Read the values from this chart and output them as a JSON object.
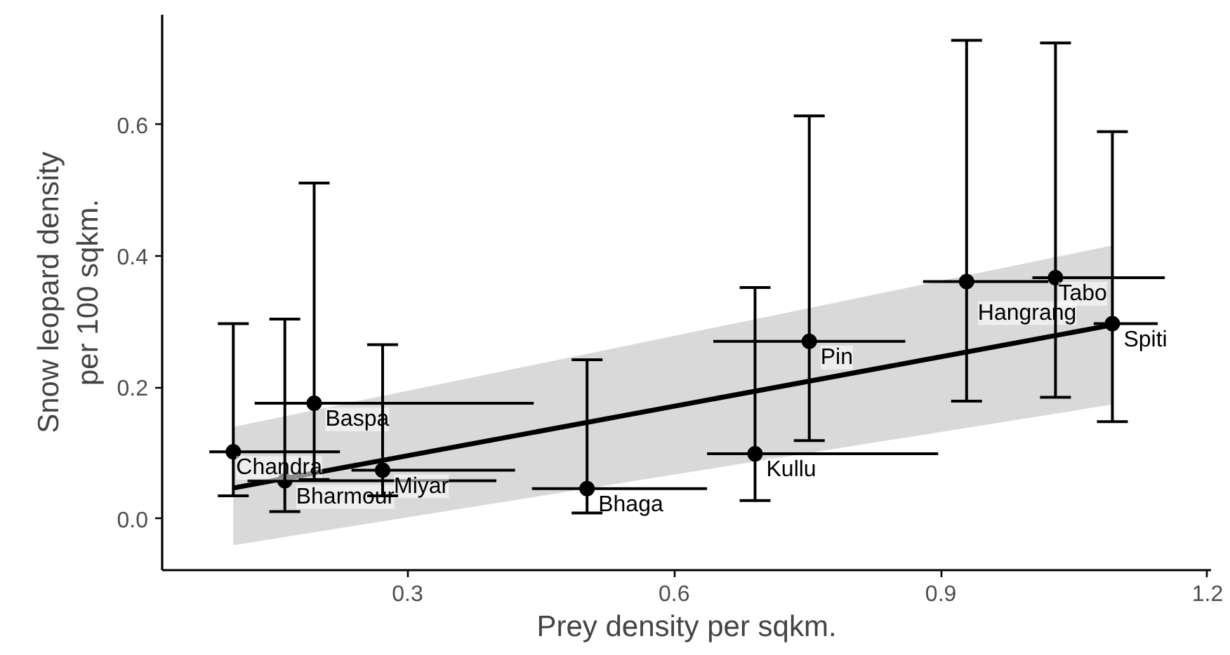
{
  "chart_data": {
    "type": "scatter",
    "xlabel": "Prey density per sqkm.",
    "ylabel": "Snow leopard density\nper 100 sqkm.",
    "xlim": [
      0.024,
      1.204
    ],
    "ylim": [
      -0.078,
      0.767
    ],
    "xticks": [
      0.3,
      0.6,
      0.9,
      1.2
    ],
    "yticks": [
      {
        "value": 0,
        "label": "0.0"
      },
      0.2,
      0.4,
      0.6
    ],
    "grid": false,
    "series": [
      {
        "type": "line",
        "color": "#000000",
        "x": [
          0.104,
          1.093
        ],
        "values": [
          0.047,
          0.295
        ],
        "lower": [
          -0.04,
          0.174
        ],
        "upper": [
          0.14,
          0.416
        ]
      },
      {
        "color": "#000000",
        "marker": "circle",
        "x": [
          0.104,
          0.162,
          0.272,
          0.195,
          0.502,
          0.691,
          0.752,
          0.929,
          1.029,
          1.093
        ],
        "values": [
          0.102,
          0.058,
          0.074,
          0.176,
          0.046,
          0.099,
          0.27,
          0.361,
          0.367,
          0.297
        ],
        "errors": [
          [
            0.035,
            0.297
          ],
          [
            0.011,
            0.304
          ],
          [
            0.035,
            0.265
          ],
          [
            0.06,
            0.511
          ],
          [
            0.009,
            0.242
          ],
          [
            0.028,
            0.352
          ],
          [
            0.119,
            0.613
          ],
          [
            0.179,
            0.728
          ],
          [
            0.185,
            0.724
          ],
          [
            0.148,
            0.589
          ]
        ],
        "xerrors": [
          [
            0.077,
            0.224
          ],
          [
            0.12,
            0.4
          ],
          [
            0.237,
            0.421
          ],
          [
            0.128,
            0.442
          ],
          [
            0.44,
            0.637
          ],
          [
            0.637,
            0.897
          ],
          [
            0.644,
            0.86
          ],
          [
            0.88,
            1.021
          ],
          [
            1.003,
            1.152
          ],
          [
            1.072,
            1.144
          ]
        ]
      }
    ],
    "annotations": [
      {
        "text": "Chandra",
        "x": 0.104,
        "y": 0.102
      },
      {
        "text": "Bharmour",
        "x": 0.162,
        "y": 0.058
      },
      {
        "text": "Miyar",
        "x": 0.272,
        "y": 0.074
      },
      {
        "text": "Baspa",
        "x": 0.195,
        "y": 0.176
      },
      {
        "text": "Bhaga",
        "x": 0.502,
        "y": 0.046
      },
      {
        "text": "Kullu",
        "x": 0.691,
        "y": 0.099
      },
      {
        "text": "Pin",
        "x": 0.752,
        "y": 0.27
      },
      {
        "text": "Hangrang",
        "x": 0.929,
        "y": 0.361
      },
      {
        "text": "Tabo",
        "x": 1.029,
        "y": 0.367
      },
      {
        "text": "Spiti",
        "x": 1.093,
        "y": 0.297
      }
    ]
  }
}
